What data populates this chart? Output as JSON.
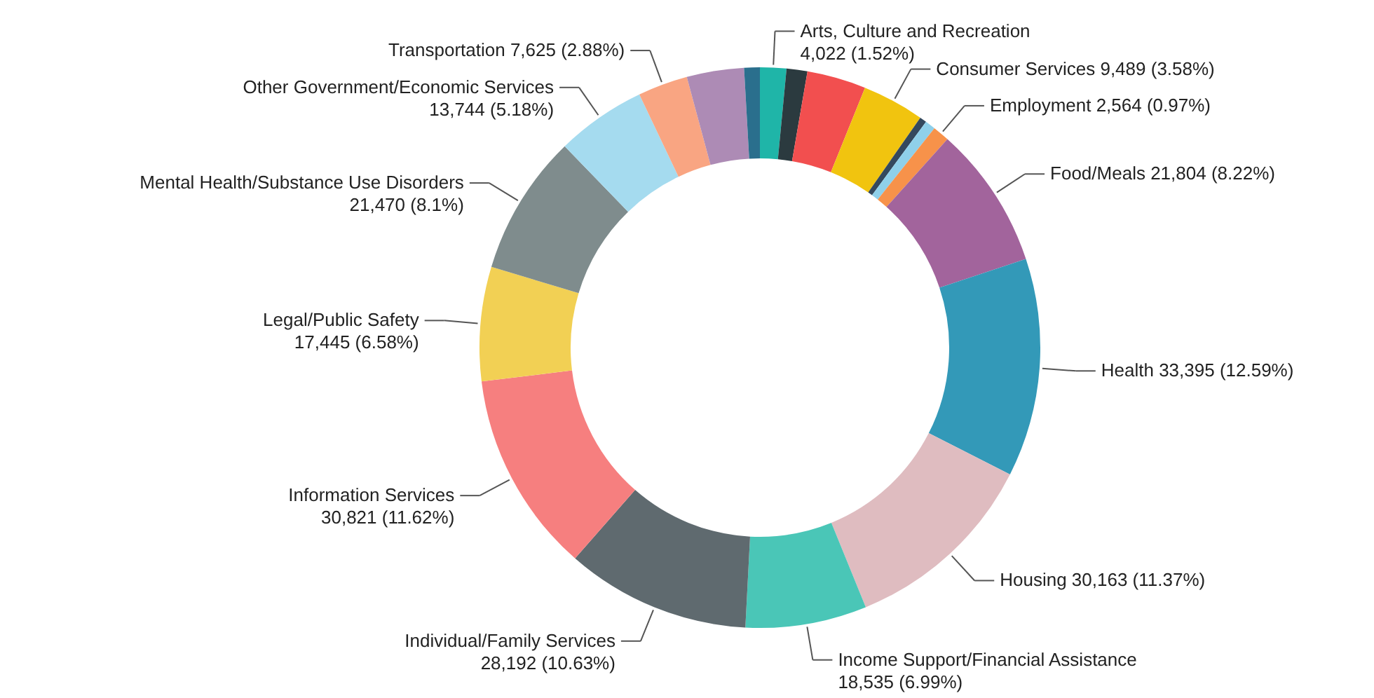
{
  "chart_data": {
    "type": "donut",
    "categories": [
      "Arts, Culture and Recreation",
      null,
      null,
      "Consumer Services",
      null,
      null,
      "Employment",
      "Food/Meals",
      "Health",
      "Housing",
      "Income Support/Financial Assistance",
      "Individual/Family Services",
      "Information Services",
      "Legal/Public Safety",
      "Mental Health/Substance Use Disorders",
      "Other Government/Economic Services",
      "Transportation",
      null,
      null
    ],
    "values": [
      4022,
      3180,
      9020,
      9489,
      1060,
      1590,
      2564,
      21804,
      33395,
      30163,
      18535,
      28192,
      30821,
      17445,
      21470,
      13744,
      7625,
      8750,
      2390
    ],
    "value_labels": [
      "4,022 (1.52%)",
      null,
      null,
      "9,489 (3.58%)",
      null,
      null,
      "2,564 (0.97%)",
      "21,804 (8.22%)",
      "33,395 (12.59%)",
      "30,163 (11.37%)",
      "18,535 (6.99%)",
      "28,192 (10.63%)",
      "30,821 (11.62%)",
      "17,445 (6.58%)",
      "21,470 (8.1%)",
      "13,744 (5.18%)",
      "7,625 (2.88%)",
      null,
      null
    ],
    "colors": [
      "#1fb5a8",
      "#2b3a3f",
      "#f24f4f",
      "#f1c40f",
      "#34495e",
      "#8fd0ea",
      "#f7924a",
      "#a2649c",
      "#3399b8",
      "#dfbcc0",
      "#4ac6b7",
      "#5f6a6f",
      "#f67f7f",
      "#f2d054",
      "#7f8c8d",
      "#a5dbef",
      "#f9a582",
      "#ad8bb5",
      "#2a6f8d"
    ]
  }
}
